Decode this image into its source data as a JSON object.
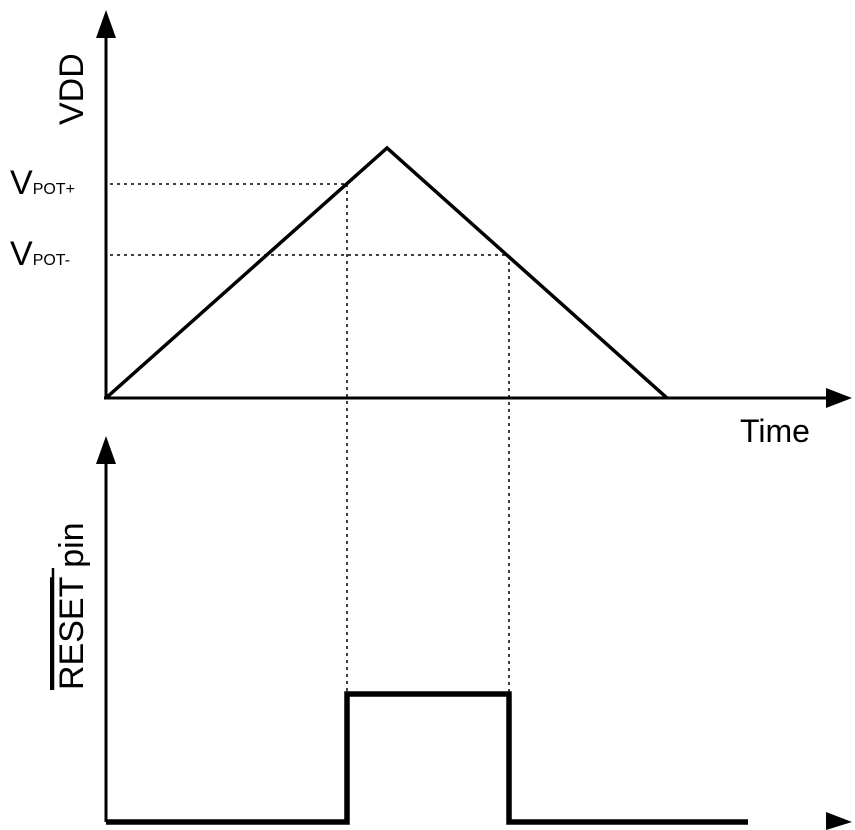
{
  "diagram": {
    "top_panel": {
      "y_axis_label": "VDD",
      "x_axis_label": "Time",
      "level_upper": {
        "prefix": "V",
        "subscript": "POT+"
      },
      "level_lower": {
        "prefix": "V",
        "subscript": "POT-"
      }
    },
    "bottom_panel": {
      "y_axis_label_overlined": "RESET",
      "y_axis_label_suffix": " pin"
    },
    "colors": {
      "line": "#000000",
      "background": "#ffffff"
    }
  }
}
